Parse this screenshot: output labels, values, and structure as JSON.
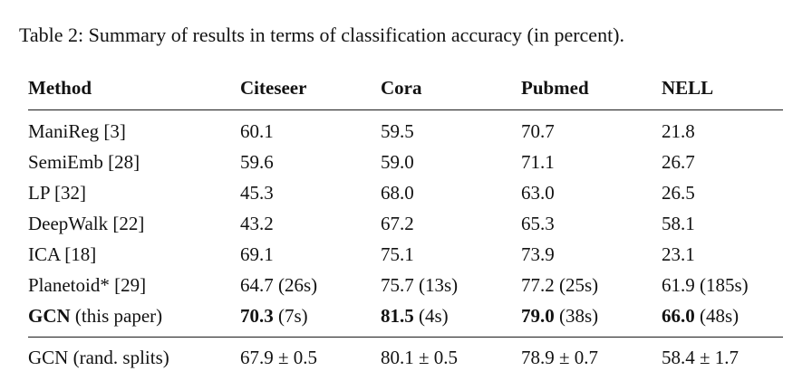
{
  "caption": "Table 2: Summary of results in terms of classification accuracy (in percent).",
  "table": {
    "headers": [
      "Method",
      "Citeseer",
      "Cora",
      "Pubmed",
      "NELL"
    ],
    "body_rows": [
      {
        "cells": [
          [
            {
              "text": "ManiReg [3]",
              "bold": false
            }
          ],
          [
            {
              "text": "60.1",
              "bold": false
            }
          ],
          [
            {
              "text": "59.5",
              "bold": false
            }
          ],
          [
            {
              "text": "70.7",
              "bold": false
            }
          ],
          [
            {
              "text": "21.8",
              "bold": false
            }
          ]
        ]
      },
      {
        "cells": [
          [
            {
              "text": "SemiEmb [28]",
              "bold": false
            }
          ],
          [
            {
              "text": "59.6",
              "bold": false
            }
          ],
          [
            {
              "text": "59.0",
              "bold": false
            }
          ],
          [
            {
              "text": "71.1",
              "bold": false
            }
          ],
          [
            {
              "text": "26.7",
              "bold": false
            }
          ]
        ]
      },
      {
        "cells": [
          [
            {
              "text": "LP [32]",
              "bold": false
            }
          ],
          [
            {
              "text": "45.3",
              "bold": false
            }
          ],
          [
            {
              "text": "68.0",
              "bold": false
            }
          ],
          [
            {
              "text": "63.0",
              "bold": false
            }
          ],
          [
            {
              "text": "26.5",
              "bold": false
            }
          ]
        ]
      },
      {
        "cells": [
          [
            {
              "text": "DeepWalk [22]",
              "bold": false
            }
          ],
          [
            {
              "text": "43.2",
              "bold": false
            }
          ],
          [
            {
              "text": "67.2",
              "bold": false
            }
          ],
          [
            {
              "text": "65.3",
              "bold": false
            }
          ],
          [
            {
              "text": "58.1",
              "bold": false
            }
          ]
        ]
      },
      {
        "cells": [
          [
            {
              "text": "ICA [18]",
              "bold": false
            }
          ],
          [
            {
              "text": "69.1",
              "bold": false
            }
          ],
          [
            {
              "text": "75.1",
              "bold": false
            }
          ],
          [
            {
              "text": "73.9",
              "bold": false
            }
          ],
          [
            {
              "text": "23.1",
              "bold": false
            }
          ]
        ]
      },
      {
        "cells": [
          [
            {
              "text": "Planetoid* [29]",
              "bold": false
            }
          ],
          [
            {
              "text": "64.7 (26s)",
              "bold": false
            }
          ],
          [
            {
              "text": "75.7 (13s)",
              "bold": false
            }
          ],
          [
            {
              "text": "77.2 (25s)",
              "bold": false
            }
          ],
          [
            {
              "text": "61.9 (185s)",
              "bold": false
            }
          ]
        ]
      },
      {
        "cells": [
          [
            {
              "text": "GCN",
              "bold": true
            },
            {
              "text": " (this paper)",
              "bold": false
            }
          ],
          [
            {
              "text": "70.3",
              "bold": true
            },
            {
              "text": " (7s)",
              "bold": false
            }
          ],
          [
            {
              "text": "81.5",
              "bold": true
            },
            {
              "text": " (4s)",
              "bold": false
            }
          ],
          [
            {
              "text": "79.0",
              "bold": true
            },
            {
              "text": " (38s)",
              "bold": false
            }
          ],
          [
            {
              "text": "66.0",
              "bold": true
            },
            {
              "text": " (48s)",
              "bold": false
            }
          ]
        ]
      }
    ],
    "footer_rows": [
      {
        "cells": [
          [
            {
              "text": "GCN (rand. splits)",
              "bold": false
            }
          ],
          [
            {
              "text": "67.9 ± 0.5",
              "bold": false
            }
          ],
          [
            {
              "text": "80.1 ± 0.5",
              "bold": false
            }
          ],
          [
            {
              "text": "78.9 ± 0.7",
              "bold": false
            }
          ],
          [
            {
              "text": "58.4 ± 1.7",
              "bold": false
            }
          ]
        ]
      }
    ]
  }
}
